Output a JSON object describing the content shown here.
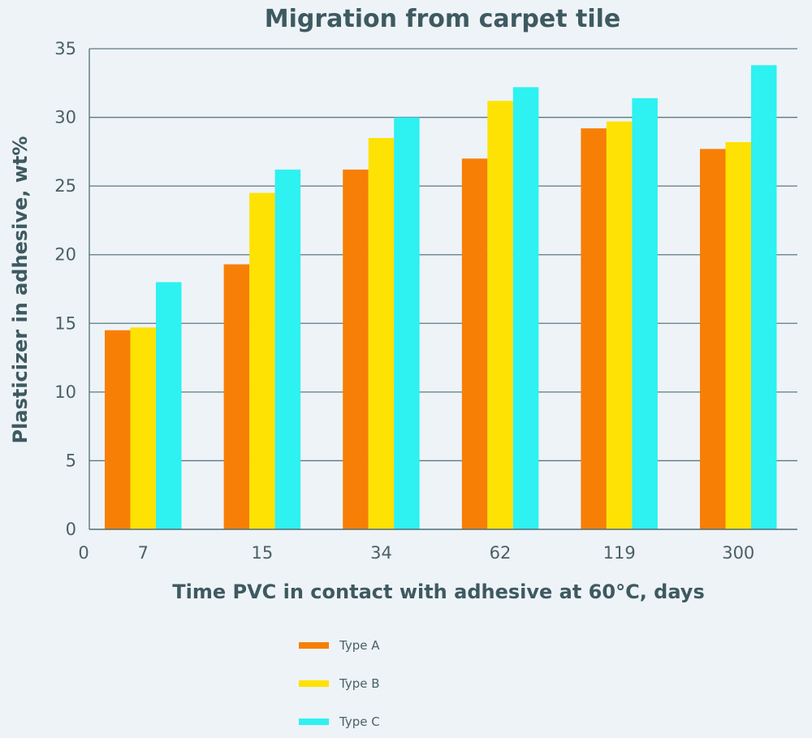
{
  "chart_data": {
    "type": "bar",
    "title": "Migration from carpet tile",
    "xlabel": "Time PVC in contact with adhesive at 60°C, days",
    "ylabel": "Plasticizer in adhesive, wt%",
    "x_origin_label": "0",
    "categories": [
      "7",
      "15",
      "34",
      "62",
      "119",
      "300"
    ],
    "ylim": [
      0,
      35
    ],
    "yticks": [
      0,
      5,
      10,
      15,
      20,
      25,
      30,
      35
    ],
    "grid": true,
    "legend_position": "bottom",
    "series": [
      {
        "name": "Type A",
        "color": "#f77f06",
        "values": [
          14.5,
          19.3,
          26.2,
          27.0,
          29.2,
          27.7
        ]
      },
      {
        "name": "Type B",
        "color": "#fde204",
        "values": [
          14.7,
          24.5,
          28.5,
          31.2,
          29.7,
          28.2
        ]
      },
      {
        "name": "Type C",
        "color": "#2ef1f1",
        "values": [
          18.0,
          26.2,
          30.0,
          32.2,
          31.4,
          33.8
        ]
      }
    ]
  }
}
